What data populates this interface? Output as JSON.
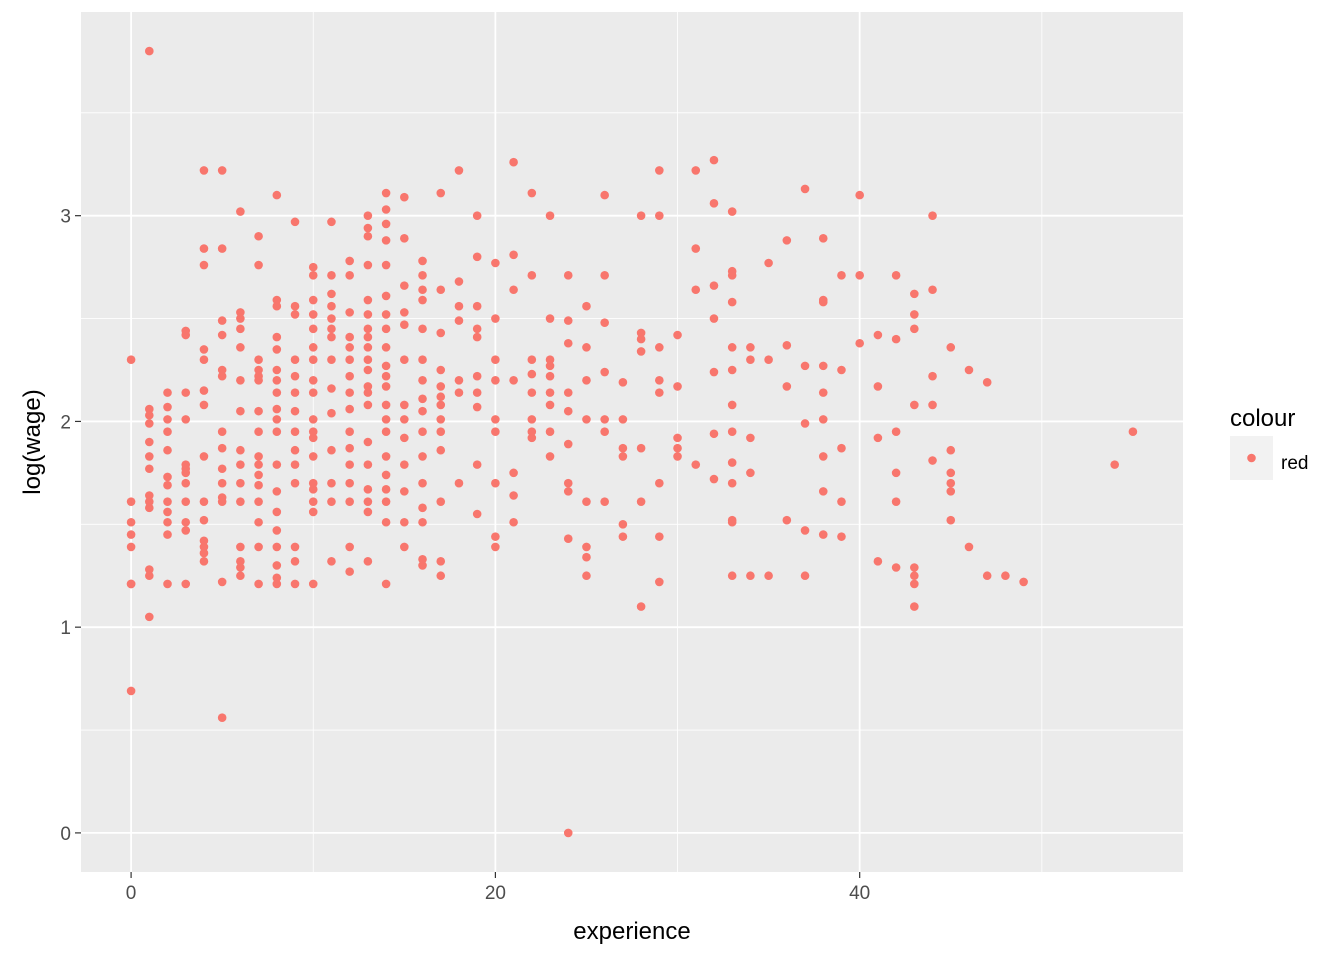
{
  "chart_data": {
    "type": "scatter",
    "title": "",
    "xlabel": "experience",
    "ylabel": "log(wage)",
    "xlim": [
      -2.75,
      57.75
    ],
    "ylim": [
      -0.19,
      3.99
    ],
    "x_ticks": [
      0,
      20,
      40
    ],
    "x_tick_labels": [
      "0",
      "20",
      "40"
    ],
    "y_ticks": [
      0,
      1,
      2,
      3
    ],
    "y_tick_labels": [
      "0",
      "1",
      "2",
      "3"
    ],
    "grid": true,
    "legend": {
      "title": "colour",
      "position": "right",
      "entries": [
        "red"
      ]
    },
    "colors": {
      "panel": "#ebebeb",
      "grid": "#ffffff",
      "point": "#f8766d",
      "legend_key": "#f2f2f2"
    },
    "series": [
      {
        "name": "red",
        "x": [
          0,
          0,
          0,
          0,
          0,
          0,
          0,
          0,
          1,
          1,
          1,
          1,
          1,
          1,
          1,
          1,
          1,
          1,
          1,
          1,
          1,
          2,
          2,
          2,
          2,
          2,
          2,
          2,
          2,
          2,
          2,
          2,
          2,
          3,
          3,
          3,
          3,
          3,
          3,
          3,
          3,
          3,
          3,
          3,
          3,
          4,
          4,
          4,
          4,
          4,
          4,
          4,
          4,
          4,
          4,
          4,
          4,
          4,
          4,
          5,
          5,
          5,
          5,
          5,
          5,
          5,
          5,
          5,
          5,
          5,
          5,
          5,
          5,
          6,
          6,
          6,
          6,
          6,
          6,
          6,
          6,
          6,
          6,
          6,
          6,
          6,
          6,
          6,
          7,
          7,
          7,
          7,
          7,
          7,
          7,
          7,
          7,
          7,
          7,
          7,
          7,
          7,
          7,
          7,
          8,
          8,
          8,
          8,
          8,
          8,
          8,
          8,
          8,
          8,
          8,
          8,
          8,
          8,
          8,
          8,
          8,
          8,
          8,
          9,
          9,
          9,
          9,
          9,
          9,
          9,
          9,
          9,
          9,
          9,
          9,
          9,
          9,
          10,
          10,
          10,
          10,
          10,
          10,
          10,
          10,
          10,
          10,
          10,
          10,
          10,
          10,
          10,
          10,
          10,
          10,
          11,
          11,
          11,
          11,
          11,
          11,
          11,
          11,
          11,
          11,
          11,
          11,
          11,
          11,
          12,
          12,
          12,
          12,
          12,
          12,
          12,
          12,
          12,
          12,
          12,
          12,
          12,
          12,
          12,
          12,
          13,
          13,
          13,
          13,
          13,
          13,
          13,
          13,
          13,
          13,
          13,
          13,
          13,
          13,
          13,
          13,
          13,
          13,
          13,
          13,
          14,
          14,
          14,
          14,
          14,
          14,
          14,
          14,
          14,
          14,
          14,
          14,
          14,
          14,
          14,
          14,
          14,
          14,
          14,
          14,
          14,
          15,
          15,
          15,
          15,
          15,
          15,
          15,
          15,
          15,
          15,
          15,
          15,
          15,
          16,
          16,
          16,
          16,
          16,
          16,
          16,
          16,
          16,
          16,
          16,
          16,
          16,
          16,
          16,
          16,
          17,
          17,
          17,
          17,
          17,
          17,
          17,
          17,
          17,
          17,
          17,
          17,
          17,
          18,
          18,
          18,
          18,
          18,
          18,
          18,
          19,
          19,
          19,
          19,
          19,
          19,
          19,
          19,
          19,
          19,
          20,
          20,
          20,
          20,
          20,
          20,
          20,
          20,
          20,
          21,
          21,
          21,
          21,
          21,
          21,
          21,
          22,
          22,
          22,
          22,
          22,
          22,
          22,
          22,
          23,
          23,
          23,
          23,
          23,
          23,
          23,
          23,
          23,
          24,
          24,
          24,
          24,
          24,
          24,
          24,
          24,
          24,
          24,
          25,
          25,
          25,
          25,
          25,
          25,
          25,
          25,
          26,
          26,
          26,
          26,
          26,
          26,
          26,
          27,
          27,
          27,
          27,
          27,
          27,
          28,
          28,
          28,
          28,
          28,
          28,
          28,
          29,
          29,
          29,
          29,
          29,
          29,
          29,
          29,
          30,
          30,
          30,
          30,
          30,
          31,
          31,
          31,
          31,
          32,
          32,
          32,
          32,
          32,
          32,
          32,
          33,
          33,
          33,
          33,
          33,
          33,
          33,
          33,
          33,
          33,
          33,
          33,
          33,
          34,
          34,
          34,
          34,
          34,
          35,
          35,
          35,
          36,
          36,
          36,
          36,
          37,
          37,
          37,
          37,
          37,
          38,
          38,
          38,
          38,
          38,
          38,
          38,
          38,
          38,
          39,
          39,
          39,
          39,
          39,
          40,
          40,
          40,
          41,
          41,
          41,
          41,
          42,
          42,
          42,
          42,
          42,
          42,
          43,
          43,
          43,
          43,
          43,
          43,
          43,
          43,
          44,
          44,
          44,
          44,
          44,
          45,
          45,
          45,
          45,
          45,
          45,
          46,
          46,
          47,
          47,
          48,
          49,
          54,
          55
        ],
        "y": [
          0.69,
          1.21,
          1.39,
          1.45,
          1.51,
          1.61,
          2.3,
          1.21,
          3.8,
          1.05,
          1.25,
          1.28,
          1.58,
          1.61,
          1.64,
          1.77,
          1.83,
          1.9,
          1.99,
          2.03,
          2.06,
          1.21,
          1.45,
          1.51,
          1.56,
          1.61,
          1.69,
          1.73,
          1.86,
          1.95,
          2.01,
          2.07,
          2.14,
          1.21,
          1.47,
          1.51,
          1.61,
          1.7,
          1.75,
          1.77,
          1.79,
          2.01,
          2.14,
          2.42,
          2.44,
          1.32,
          1.36,
          1.39,
          1.42,
          1.52,
          1.61,
          1.83,
          2.08,
          2.15,
          2.3,
          2.35,
          2.76,
          2.84,
          3.22,
          0.56,
          1.22,
          1.61,
          1.63,
          1.7,
          1.77,
          1.87,
          1.95,
          2.22,
          2.25,
          2.42,
          2.49,
          2.84,
          3.22,
          1.25,
          1.29,
          1.32,
          1.39,
          1.61,
          1.7,
          1.79,
          1.86,
          2.05,
          2.2,
          2.36,
          2.45,
          2.5,
          2.53,
          3.02,
          1.21,
          1.39,
          1.51,
          1.61,
          1.74,
          1.79,
          1.83,
          1.95,
          2.05,
          2.2,
          2.22,
          2.25,
          2.3,
          2.76,
          2.9,
          1.69,
          1.21,
          1.24,
          1.3,
          1.39,
          1.47,
          1.56,
          1.66,
          1.79,
          1.95,
          2.01,
          2.06,
          2.14,
          2.2,
          2.25,
          2.41,
          2.56,
          2.59,
          3.1,
          2.35,
          1.21,
          1.32,
          1.39,
          1.7,
          1.79,
          1.86,
          1.95,
          2.05,
          2.14,
          2.22,
          2.3,
          2.52,
          2.56,
          2.97,
          1.21,
          1.56,
          1.61,
          1.67,
          1.7,
          1.83,
          1.92,
          1.95,
          2.01,
          2.14,
          2.2,
          2.3,
          2.36,
          2.45,
          2.52,
          2.59,
          2.71,
          2.75,
          1.32,
          1.61,
          1.7,
          1.86,
          2.04,
          2.16,
          2.3,
          2.41,
          2.45,
          2.5,
          2.56,
          2.62,
          2.71,
          2.97,
          1.27,
          1.39,
          1.61,
          1.7,
          1.79,
          1.87,
          1.95,
          2.06,
          2.14,
          2.22,
          2.3,
          2.36,
          2.41,
          2.53,
          2.71,
          2.78,
          1.32,
          1.56,
          1.61,
          1.67,
          1.79,
          1.9,
          2.08,
          2.14,
          2.17,
          2.25,
          2.3,
          2.36,
          2.41,
          2.45,
          2.52,
          2.59,
          2.76,
          2.9,
          2.94,
          3.0,
          1.21,
          1.51,
          1.61,
          1.67,
          1.74,
          1.83,
          1.95,
          2.01,
          2.08,
          2.17,
          2.22,
          2.27,
          2.36,
          2.45,
          2.52,
          2.61,
          2.76,
          2.88,
          2.96,
          3.03,
          3.11,
          1.39,
          1.51,
          1.66,
          1.79,
          1.92,
          2.01,
          2.08,
          2.3,
          2.47,
          2.53,
          2.66,
          2.89,
          3.09,
          1.3,
          1.33,
          1.51,
          1.58,
          1.7,
          1.83,
          1.95,
          2.05,
          2.11,
          2.2,
          2.3,
          2.45,
          2.59,
          2.64,
          2.71,
          2.78,
          1.25,
          1.32,
          1.61,
          1.86,
          1.95,
          2.01,
          2.08,
          2.12,
          2.17,
          2.25,
          2.43,
          2.64,
          3.11,
          1.7,
          2.14,
          2.2,
          2.49,
          2.56,
          2.68,
          3.22,
          1.55,
          1.79,
          2.07,
          2.14,
          2.22,
          2.41,
          2.45,
          2.56,
          2.8,
          3.0,
          1.39,
          1.44,
          1.7,
          1.95,
          2.01,
          2.2,
          2.3,
          2.5,
          2.77,
          1.51,
          1.64,
          1.75,
          2.2,
          2.64,
          2.81,
          3.26,
          1.92,
          1.95,
          2.01,
          2.14,
          2.23,
          2.3,
          2.71,
          3.11,
          1.83,
          1.95,
          2.08,
          2.14,
          2.22,
          2.27,
          2.3,
          2.5,
          3.0,
          0.0,
          1.43,
          1.66,
          1.7,
          1.89,
          2.05,
          2.14,
          2.38,
          2.49,
          2.71,
          1.25,
          1.34,
          1.39,
          1.61,
          2.01,
          2.2,
          2.36,
          2.56,
          1.61,
          1.95,
          2.01,
          2.24,
          2.48,
          2.71,
          3.1,
          1.44,
          1.5,
          1.83,
          1.87,
          2.01,
          2.19,
          1.1,
          1.61,
          1.87,
          2.34,
          2.4,
          2.43,
          3.0,
          1.22,
          1.44,
          1.7,
          2.14,
          2.2,
          2.36,
          3.0,
          3.22,
          1.83,
          1.87,
          1.92,
          2.17,
          2.42,
          1.79,
          2.64,
          2.84,
          3.22,
          1.72,
          1.94,
          2.24,
          2.5,
          2.66,
          3.06,
          3.27,
          1.25,
          1.51,
          1.52,
          1.7,
          1.8,
          1.95,
          2.08,
          2.25,
          2.36,
          2.58,
          2.71,
          2.73,
          3.02,
          1.25,
          1.75,
          1.92,
          2.3,
          2.36,
          1.25,
          2.3,
          2.77,
          1.52,
          2.17,
          2.37,
          2.88,
          1.25,
          1.47,
          1.99,
          2.27,
          3.13,
          1.45,
          1.66,
          1.83,
          2.01,
          2.14,
          2.27,
          2.58,
          2.89,
          2.59,
          1.44,
          1.61,
          1.87,
          2.25,
          2.71,
          2.38,
          2.71,
          3.1,
          1.32,
          1.92,
          2.17,
          2.42,
          1.29,
          1.61,
          1.75,
          1.95,
          2.4,
          2.71,
          1.1,
          1.21,
          1.25,
          1.29,
          2.08,
          2.45,
          2.52,
          2.62,
          1.81,
          2.08,
          2.22,
          2.64,
          3.0,
          1.52,
          1.66,
          1.7,
          1.75,
          1.86,
          2.36,
          1.39,
          2.25,
          1.25,
          2.19,
          1.25,
          1.22,
          1.79,
          1.95
        ]
      }
    ]
  }
}
